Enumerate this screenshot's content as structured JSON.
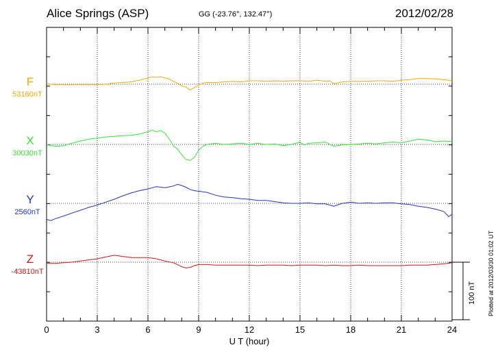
{
  "header": {
    "station": "Alice Springs (ASP)",
    "coords": "GG (-23.76°, 132.47°)",
    "date": "2012/02/28"
  },
  "footer": "Plotted at 2012/03/30 01:02 UT",
  "scale_label": "100 nT",
  "chart_data": {
    "type": "line",
    "xlabel": "U T (hour)",
    "xlim": [
      0,
      24
    ],
    "xticks": [
      "0",
      "3",
      "6",
      "9",
      "12",
      "15",
      "18",
      "21",
      "24"
    ],
    "scale_nT": 100,
    "grid": true,
    "series": [
      {
        "name": "F",
        "baseline_label": "53160nT",
        "color": "#f5a800",
        "x": [
          0,
          0.5,
          1,
          1.5,
          2,
          2.5,
          3,
          3.5,
          4,
          4.5,
          5,
          5.5,
          6,
          6.25,
          6.5,
          6.75,
          7,
          7.25,
          7.5,
          7.75,
          8,
          8.25,
          8.5,
          8.75,
          9,
          9.25,
          9.5,
          10,
          10.5,
          11,
          11.5,
          12,
          12.5,
          13,
          13.5,
          14,
          14.5,
          15,
          15.5,
          16,
          16.5,
          16.75,
          17,
          17.5,
          18,
          18.5,
          19,
          19.5,
          20,
          20.5,
          21,
          21.5,
          22,
          22.5,
          23,
          23.5,
          24
        ],
        "values": [
          1,
          -1,
          -1,
          -1,
          -1,
          -1,
          -1,
          0,
          2,
          3,
          4,
          7,
          11,
          13,
          12,
          13,
          11,
          9,
          5,
          2,
          -3,
          -5,
          -10,
          -6,
          -2,
          2,
          3,
          3,
          4,
          5,
          4,
          6,
          6,
          5,
          6,
          5,
          6,
          6,
          5,
          7,
          5,
          6,
          1,
          4,
          5,
          5,
          5,
          6,
          6,
          5,
          7,
          8,
          10,
          10,
          9,
          8,
          6
        ]
      },
      {
        "name": "X",
        "baseline_label": "30030nT",
        "color": "#33e633",
        "x": [
          0,
          0.25,
          0.5,
          0.75,
          1,
          1.5,
          2,
          2.5,
          3,
          3.5,
          4,
          4.5,
          5,
          5.5,
          6,
          6.25,
          6.5,
          6.75,
          7,
          7.25,
          7.5,
          7.75,
          8,
          8.25,
          8.5,
          8.75,
          9,
          9.25,
          9.5,
          10,
          10.5,
          11,
          11.5,
          12,
          12.5,
          13,
          13.5,
          14,
          14.5,
          15,
          15.25,
          15.5,
          16,
          16.5,
          17,
          17.5,
          18,
          18.5,
          19,
          19.5,
          20,
          20.5,
          21,
          21.5,
          22,
          22.5,
          23,
          23.5,
          24
        ],
        "values": [
          0,
          -2,
          -3,
          -3,
          -2,
          2,
          6,
          9,
          11,
          13,
          14,
          15,
          16,
          18,
          22,
          25,
          22,
          24,
          20,
          10,
          -2,
          -8,
          -18,
          -26,
          -28,
          -22,
          -10,
          -3,
          0,
          2,
          0,
          1,
          2,
          0,
          2,
          0,
          1,
          -2,
          0,
          4,
          -1,
          2,
          3,
          4,
          -3,
          -1,
          0,
          1,
          2,
          1,
          3,
          4,
          3,
          6,
          9,
          8,
          5,
          6,
          5
        ]
      },
      {
        "name": "Y",
        "baseline_label": "2560nT",
        "color": "#2233cc",
        "x": [
          0,
          0.25,
          0.5,
          1,
          1.5,
          2,
          2.5,
          3,
          3.5,
          4,
          4.5,
          5,
          5.5,
          6,
          6.5,
          7,
          7.5,
          7.75,
          8,
          8.25,
          8.5,
          8.75,
          9,
          9.5,
          10,
          10.5,
          11,
          11.5,
          12,
          12.5,
          13,
          13.5,
          14,
          14.5,
          15,
          15.5,
          16,
          16.5,
          17,
          17.5,
          18,
          18.5,
          19,
          19.5,
          20,
          20.5,
          21,
          21.5,
          22,
          22.5,
          23,
          23.5,
          23.8,
          24
        ],
        "values": [
          -28,
          -30,
          -27,
          -22,
          -17,
          -12,
          -7,
          -3,
          2,
          7,
          13,
          18,
          22,
          25,
          29,
          27,
          30,
          33,
          31,
          28,
          24,
          22,
          21,
          19,
          14,
          11,
          10,
          8,
          7,
          5,
          5,
          3,
          1,
          0,
          0,
          1,
          -1,
          -1,
          -5,
          0,
          2,
          0,
          1,
          0,
          1,
          1,
          -1,
          -2,
          -5,
          -7,
          -10,
          -14,
          -23,
          -19
        ]
      },
      {
        "name": "Z",
        "baseline_label": "-43810nT",
        "color": "#dd1111",
        "x": [
          0,
          0.5,
          1,
          1.5,
          2,
          2.5,
          3,
          3.5,
          4,
          4.5,
          5,
          5.5,
          6,
          6.5,
          7,
          7.5,
          7.75,
          8,
          8.25,
          8.5,
          8.75,
          9,
          9.5,
          10,
          10.5,
          11,
          11.5,
          12,
          12.5,
          13,
          13.5,
          14,
          14.5,
          15,
          15.5,
          16,
          16.5,
          17,
          17.5,
          18,
          18.5,
          19,
          19.5,
          20,
          20.5,
          21,
          21.5,
          22,
          22.5,
          23,
          23.5,
          24
        ],
        "values": [
          -2,
          -2,
          -1,
          0,
          2,
          4,
          6,
          9,
          12,
          10,
          8,
          8,
          8,
          6,
          2,
          -1,
          -4,
          -8,
          -10,
          -9,
          -6,
          -4,
          -4,
          -5,
          -5,
          -5,
          -5,
          -5,
          -6,
          -5,
          -5,
          -5,
          -6,
          -5,
          -5,
          -5,
          -6,
          -5,
          -6,
          -6,
          -5,
          -6,
          -6,
          -6,
          -6,
          -6,
          -5,
          -5,
          -5,
          -4,
          -3,
          -1
        ]
      }
    ]
  }
}
